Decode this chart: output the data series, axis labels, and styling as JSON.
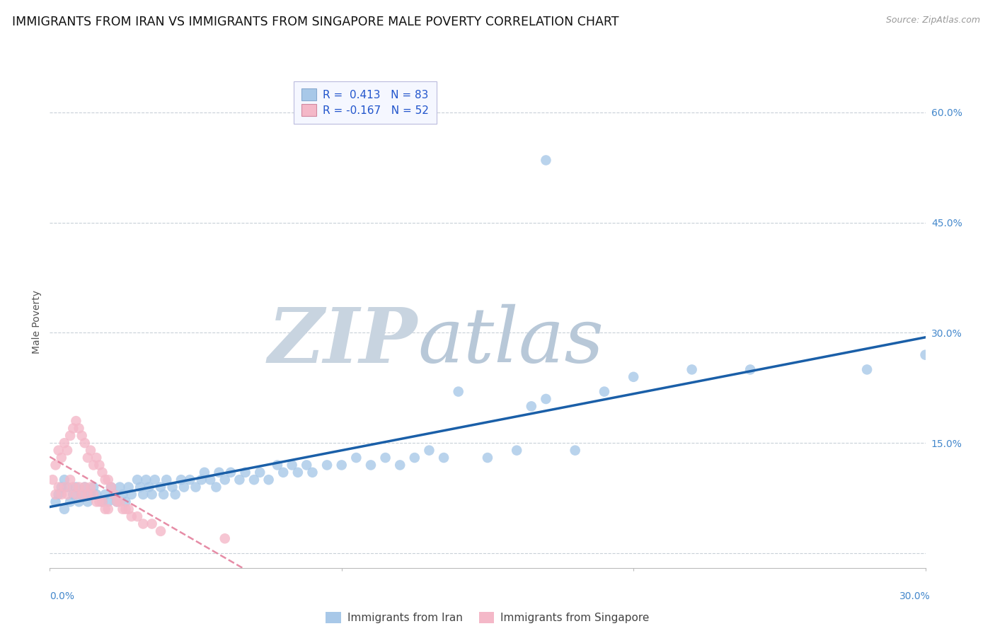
{
  "title": "IMMIGRANTS FROM IRAN VS IMMIGRANTS FROM SINGAPORE MALE POVERTY CORRELATION CHART",
  "source": "Source: ZipAtlas.com",
  "ylabel": "Male Poverty",
  "xlim": [
    0.0,
    0.3
  ],
  "ylim": [
    -0.02,
    0.65
  ],
  "yticks": [
    0.0,
    0.15,
    0.3,
    0.45,
    0.6
  ],
  "ytick_labels": [
    "",
    "15.0%",
    "30.0%",
    "45.0%",
    "60.0%"
  ],
  "xtick_vals": [
    0.0,
    0.1,
    0.2,
    0.3
  ],
  "iran_R": 0.413,
  "iran_N": 83,
  "singapore_R": -0.167,
  "singapore_N": 52,
  "iran_color": "#a8c8e8",
  "singapore_color": "#f4b8c8",
  "iran_line_color": "#1a5fa8",
  "singapore_line_color": "#e07090",
  "background_color": "#ffffff",
  "grid_color": "#c8d0d8",
  "watermark_zip_color": "#c8d4e0",
  "watermark_atlas_color": "#b8c8d8",
  "title_fontsize": 12.5,
  "axis_label_fontsize": 10,
  "tick_fontsize": 10,
  "iran_x": [
    0.002,
    0.003,
    0.004,
    0.005,
    0.005,
    0.006,
    0.007,
    0.008,
    0.009,
    0.01,
    0.011,
    0.012,
    0.013,
    0.014,
    0.015,
    0.016,
    0.018,
    0.019,
    0.02,
    0.021,
    0.022,
    0.023,
    0.024,
    0.025,
    0.026,
    0.027,
    0.028,
    0.03,
    0.031,
    0.032,
    0.033,
    0.034,
    0.035,
    0.036,
    0.038,
    0.039,
    0.04,
    0.042,
    0.043,
    0.045,
    0.046,
    0.048,
    0.05,
    0.052,
    0.053,
    0.055,
    0.057,
    0.058,
    0.06,
    0.062,
    0.065,
    0.067,
    0.07,
    0.072,
    0.075,
    0.078,
    0.08,
    0.083,
    0.085,
    0.088,
    0.09,
    0.095,
    0.1,
    0.105,
    0.11,
    0.115,
    0.12,
    0.125,
    0.13,
    0.135,
    0.14,
    0.15,
    0.16,
    0.165,
    0.17,
    0.18,
    0.19,
    0.2,
    0.22,
    0.24,
    0.17,
    0.28,
    0.3
  ],
  "iran_y": [
    0.07,
    0.08,
    0.09,
    0.06,
    0.1,
    0.09,
    0.07,
    0.08,
    0.09,
    0.07,
    0.08,
    0.09,
    0.07,
    0.08,
    0.09,
    0.08,
    0.07,
    0.08,
    0.07,
    0.09,
    0.08,
    0.07,
    0.09,
    0.08,
    0.07,
    0.09,
    0.08,
    0.1,
    0.09,
    0.08,
    0.1,
    0.09,
    0.08,
    0.1,
    0.09,
    0.08,
    0.1,
    0.09,
    0.08,
    0.1,
    0.09,
    0.1,
    0.09,
    0.1,
    0.11,
    0.1,
    0.09,
    0.11,
    0.1,
    0.11,
    0.1,
    0.11,
    0.1,
    0.11,
    0.1,
    0.12,
    0.11,
    0.12,
    0.11,
    0.12,
    0.11,
    0.12,
    0.12,
    0.13,
    0.12,
    0.13,
    0.12,
    0.13,
    0.14,
    0.13,
    0.22,
    0.13,
    0.14,
    0.2,
    0.21,
    0.14,
    0.22,
    0.24,
    0.25,
    0.25,
    0.535,
    0.25,
    0.27
  ],
  "singapore_x": [
    0.001,
    0.002,
    0.002,
    0.003,
    0.003,
    0.004,
    0.004,
    0.005,
    0.005,
    0.006,
    0.006,
    0.007,
    0.007,
    0.008,
    0.008,
    0.009,
    0.009,
    0.01,
    0.01,
    0.011,
    0.011,
    0.012,
    0.012,
    0.013,
    0.013,
    0.014,
    0.014,
    0.015,
    0.015,
    0.016,
    0.016,
    0.017,
    0.017,
    0.018,
    0.018,
    0.019,
    0.019,
    0.02,
    0.02,
    0.021,
    0.022,
    0.023,
    0.024,
    0.025,
    0.026,
    0.027,
    0.028,
    0.03,
    0.032,
    0.035,
    0.038,
    0.06
  ],
  "singapore_y": [
    0.1,
    0.12,
    0.08,
    0.14,
    0.09,
    0.13,
    0.08,
    0.15,
    0.09,
    0.14,
    0.08,
    0.16,
    0.1,
    0.17,
    0.09,
    0.18,
    0.08,
    0.17,
    0.09,
    0.16,
    0.08,
    0.15,
    0.09,
    0.13,
    0.08,
    0.14,
    0.09,
    0.12,
    0.08,
    0.13,
    0.07,
    0.12,
    0.07,
    0.11,
    0.07,
    0.1,
    0.06,
    0.1,
    0.06,
    0.09,
    0.08,
    0.07,
    0.07,
    0.06,
    0.06,
    0.06,
    0.05,
    0.05,
    0.04,
    0.04,
    0.03,
    0.02
  ]
}
